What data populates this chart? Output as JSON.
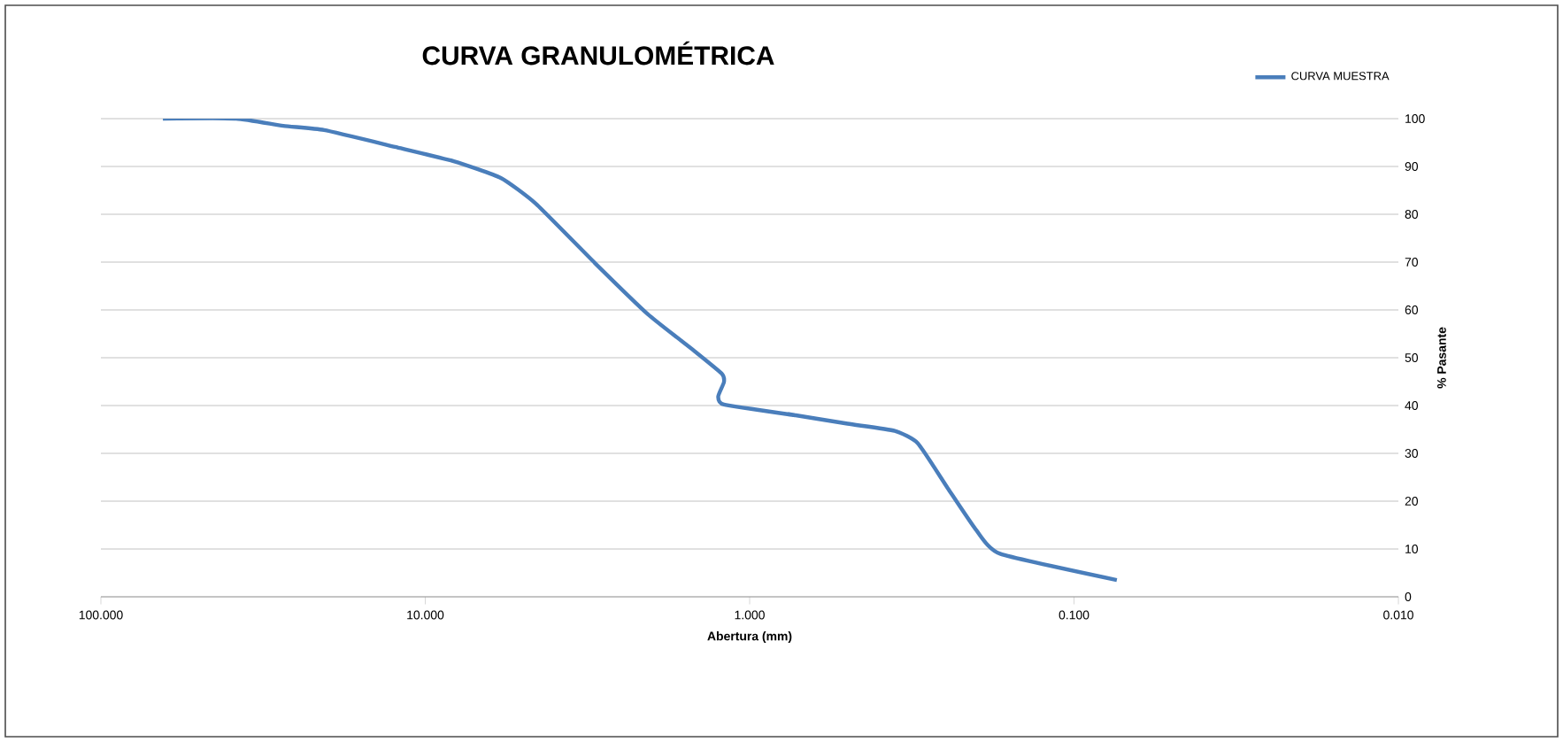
{
  "chart_data": {
    "type": "line",
    "title": "CURVA GRANULOMÉTRICA",
    "xlabel": "Abertura (mm)",
    "ylabel": "% Pasante",
    "log": "x",
    "xlim": [
      100,
      0.01
    ],
    "xticks": [
      {
        "value": 100,
        "label": "100.000"
      },
      {
        "value": 10,
        "label": "10.000"
      },
      {
        "value": 1,
        "label": "1.000"
      },
      {
        "value": 0.1,
        "label": "0.100"
      },
      {
        "value": 0.01,
        "label": "0.010"
      }
    ],
    "ylim": [
      0,
      100
    ],
    "yticks": [
      0,
      10,
      20,
      30,
      40,
      50,
      60,
      70,
      80,
      90,
      100
    ],
    "grid": "y",
    "legend": "top right",
    "marker": "none",
    "line_style": "solid",
    "series": [
      {
        "name": "CURVA MUESTRA",
        "color": "#4a7ebb",
        "x": [
          64.4,
          38.3,
          27.4,
          20.5,
          12.4,
          8.17,
          5.85,
          4.56,
          3.0,
          2.06,
          1.48,
          1.22,
          1.2,
          1.25,
          1.2,
          0.73,
          0.757,
          0.499,
          0.357,
          0.303,
          0.245,
          0.2,
          0.169,
          0.0738
        ],
        "values": [
          100,
          100,
          98.5,
          97.6,
          94.1,
          91.1,
          87.6,
          82.2,
          69.8,
          59.1,
          51.4,
          46.7,
          44.9,
          41.9,
          40.2,
          38.0,
          38.2,
          36.2,
          34.7,
          32.1,
          22.7,
          13.9,
          9,
          3.5
        ]
      }
    ]
  }
}
